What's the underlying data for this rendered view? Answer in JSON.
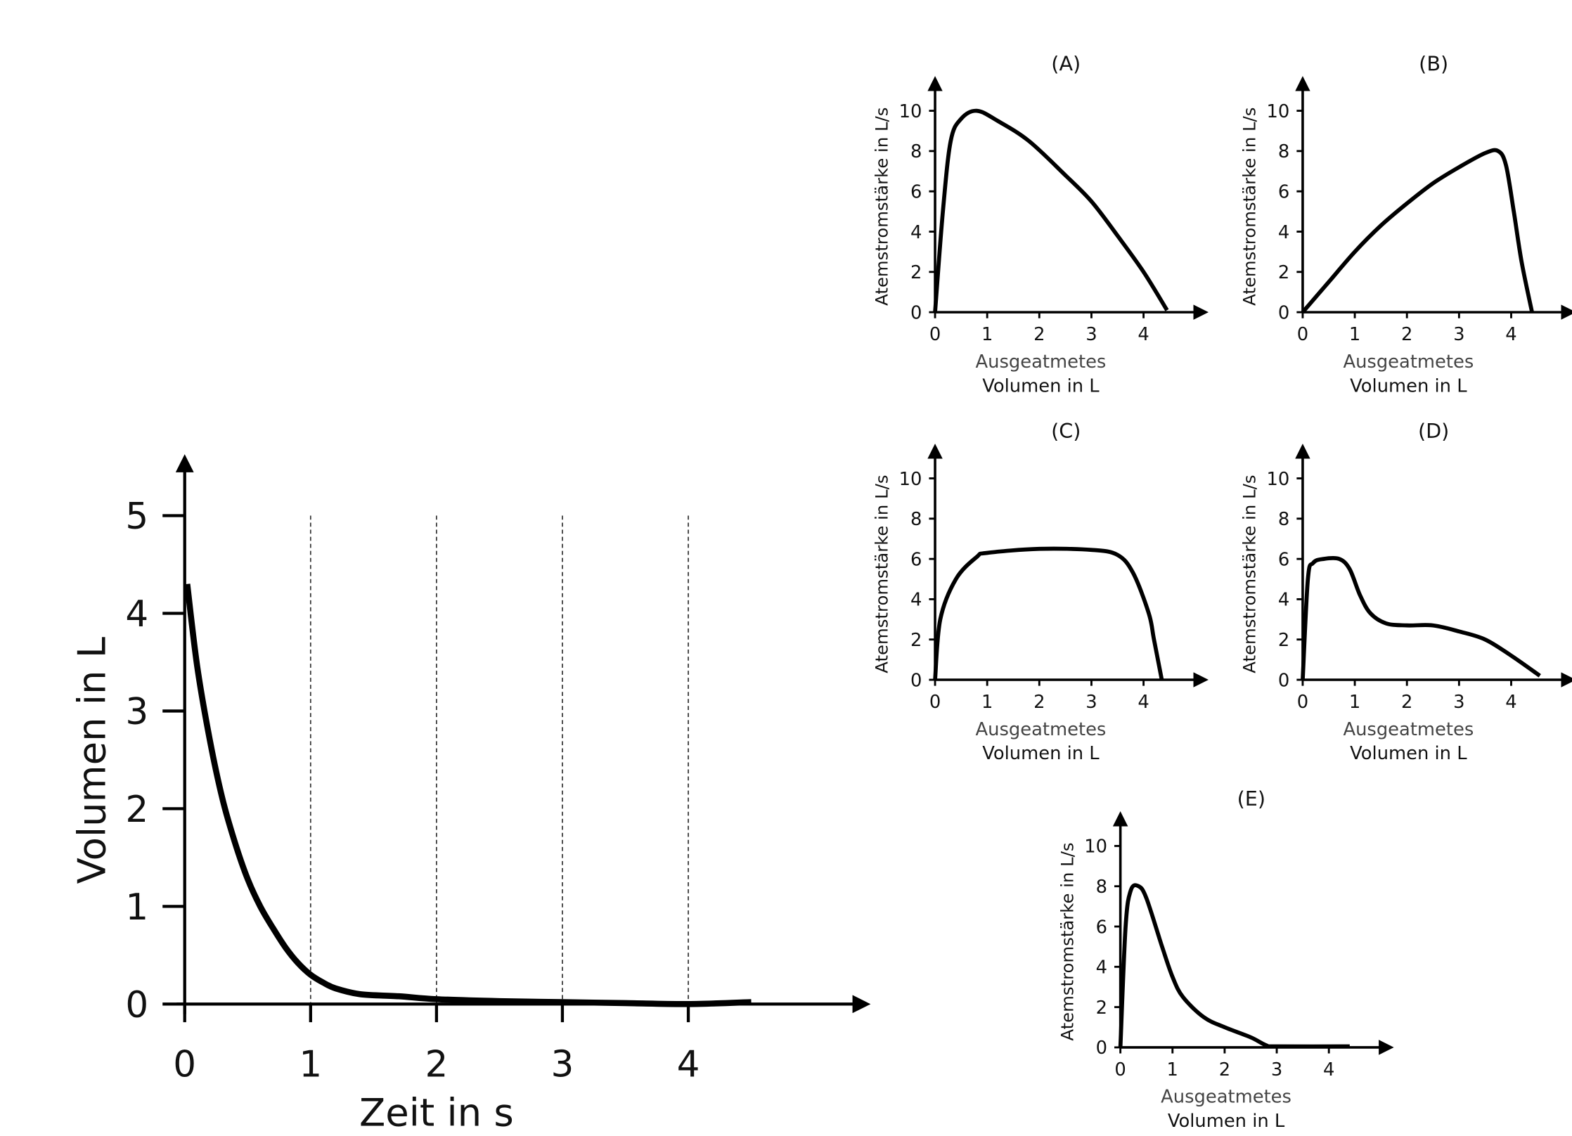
{
  "chart_data": [
    {
      "id": "main",
      "type": "line",
      "title": "",
      "xlabel": "Zeit in s",
      "ylabel": "Volumen in L",
      "xlim": [
        0,
        5.4
      ],
      "ylim": [
        0,
        5.5
      ],
      "xticks": [
        0,
        1,
        2,
        3,
        4
      ],
      "yticks": [
        0,
        1,
        2,
        3,
        4,
        5
      ],
      "grid": "vertical dashed lines at x = 1, 2, 3, 4",
      "series": [
        {
          "x": [
            0.02,
            0.1,
            0.2,
            0.3,
            0.4,
            0.5,
            0.6,
            0.7,
            0.8,
            0.9,
            1.0,
            1.1,
            1.2,
            1.4,
            1.7,
            2.0,
            2.5,
            3.0,
            3.5,
            4.0,
            4.5
          ],
          "y": [
            4.3,
            3.45,
            2.7,
            2.1,
            1.65,
            1.28,
            1.0,
            0.78,
            0.58,
            0.42,
            0.3,
            0.22,
            0.16,
            0.1,
            0.08,
            0.05,
            0.03,
            0.02,
            0.01,
            0.0,
            0.02
          ]
        }
      ]
    },
    {
      "id": "A",
      "type": "line",
      "title": "(A)",
      "xlabel": [
        "Ausgeatmetes",
        "Volumen in L"
      ],
      "ylabel": "Atemstromstärke in L/s",
      "xlim": [
        0,
        5
      ],
      "ylim": [
        0,
        11
      ],
      "xticks": [
        0,
        1,
        2,
        3,
        4
      ],
      "yticks": [
        0,
        2,
        4,
        6,
        8,
        10
      ],
      "series": [
        {
          "x": [
            0,
            0.15,
            0.3,
            0.5,
            0.8,
            1.2,
            1.8,
            2.5,
            3.0,
            3.5,
            4.0,
            4.45
          ],
          "y": [
            0,
            5,
            8.5,
            9.6,
            10,
            9.5,
            8.5,
            6.8,
            5.5,
            3.8,
            2.0,
            0.1
          ]
        }
      ]
    },
    {
      "id": "B",
      "type": "line",
      "title": "(B)",
      "xlabel": [
        "Ausgeatmetes",
        "Volumen in L"
      ],
      "ylabel": "Atemstromstärke in L/s",
      "xlim": [
        0,
        5
      ],
      "ylim": [
        0,
        11
      ],
      "xticks": [
        0,
        1,
        2,
        3,
        4
      ],
      "yticks": [
        0,
        2,
        4,
        6,
        8,
        10
      ],
      "series": [
        {
          "x": [
            0,
            0.5,
            1,
            1.5,
            2,
            2.5,
            3,
            3.5,
            3.75,
            3.9,
            4.05,
            4.2,
            4.4
          ],
          "y": [
            0,
            1.5,
            3,
            4.3,
            5.4,
            6.4,
            7.2,
            7.9,
            8,
            7.3,
            5,
            2.5,
            0
          ]
        }
      ]
    },
    {
      "id": "C",
      "type": "line",
      "title": "(C)",
      "xlabel": [
        "Ausgeatmetes",
        "Volumen in L"
      ],
      "ylabel": "Atemstromstärke in L/s",
      "xlim": [
        0,
        5
      ],
      "ylim": [
        0,
        11
      ],
      "xticks": [
        0,
        1,
        2,
        3,
        4
      ],
      "yticks": [
        0,
        2,
        4,
        6,
        8,
        10
      ],
      "series": [
        {
          "x": [
            0,
            0.1,
            0.4,
            0.8,
            1,
            2,
            3,
            3.5,
            3.8,
            4.1,
            4.2,
            4.35
          ],
          "y": [
            0,
            3,
            5,
            6.1,
            6.3,
            6.5,
            6.45,
            6.2,
            5.3,
            3.3,
            2,
            0
          ]
        }
      ]
    },
    {
      "id": "D",
      "type": "line",
      "title": "(D)",
      "xlabel": [
        "Ausgeatmetes",
        "Volumen in L"
      ],
      "ylabel": "Atemstromstärke in L/s",
      "xlim": [
        0,
        5
      ],
      "ylim": [
        0,
        11
      ],
      "xticks": [
        0,
        1,
        2,
        3,
        4
      ],
      "yticks": [
        0,
        2,
        4,
        6,
        8,
        10
      ],
      "series": [
        {
          "x": [
            0,
            0.1,
            0.2,
            0.4,
            0.7,
            0.9,
            1.1,
            1.3,
            1.6,
            2,
            2.5,
            3,
            3.5,
            4,
            4.55
          ],
          "y": [
            0,
            5,
            5.8,
            6,
            6,
            5.5,
            4.2,
            3.3,
            2.8,
            2.7,
            2.7,
            2.4,
            2,
            1.2,
            0.2
          ]
        }
      ]
    },
    {
      "id": "E",
      "type": "line",
      "title": "(E)",
      "xlabel": [
        "Ausgeatmetes",
        "Volumen in L"
      ],
      "ylabel": "Atemstromstärke in L/s",
      "xlim": [
        0,
        5
      ],
      "ylim": [
        0,
        11
      ],
      "xticks": [
        0,
        1,
        2,
        3,
        4
      ],
      "yticks": [
        0,
        2,
        4,
        6,
        8,
        10
      ],
      "series": [
        {
          "x": [
            0,
            0.1,
            0.2,
            0.35,
            0.5,
            0.8,
            1,
            1.2,
            1.6,
            2,
            2.5,
            2.8,
            3,
            4.4
          ],
          "y": [
            0,
            6,
            7.8,
            8,
            7.4,
            5,
            3.5,
            2.5,
            1.5,
            1,
            0.5,
            0.1,
            0.05,
            0.05
          ]
        }
      ]
    }
  ]
}
